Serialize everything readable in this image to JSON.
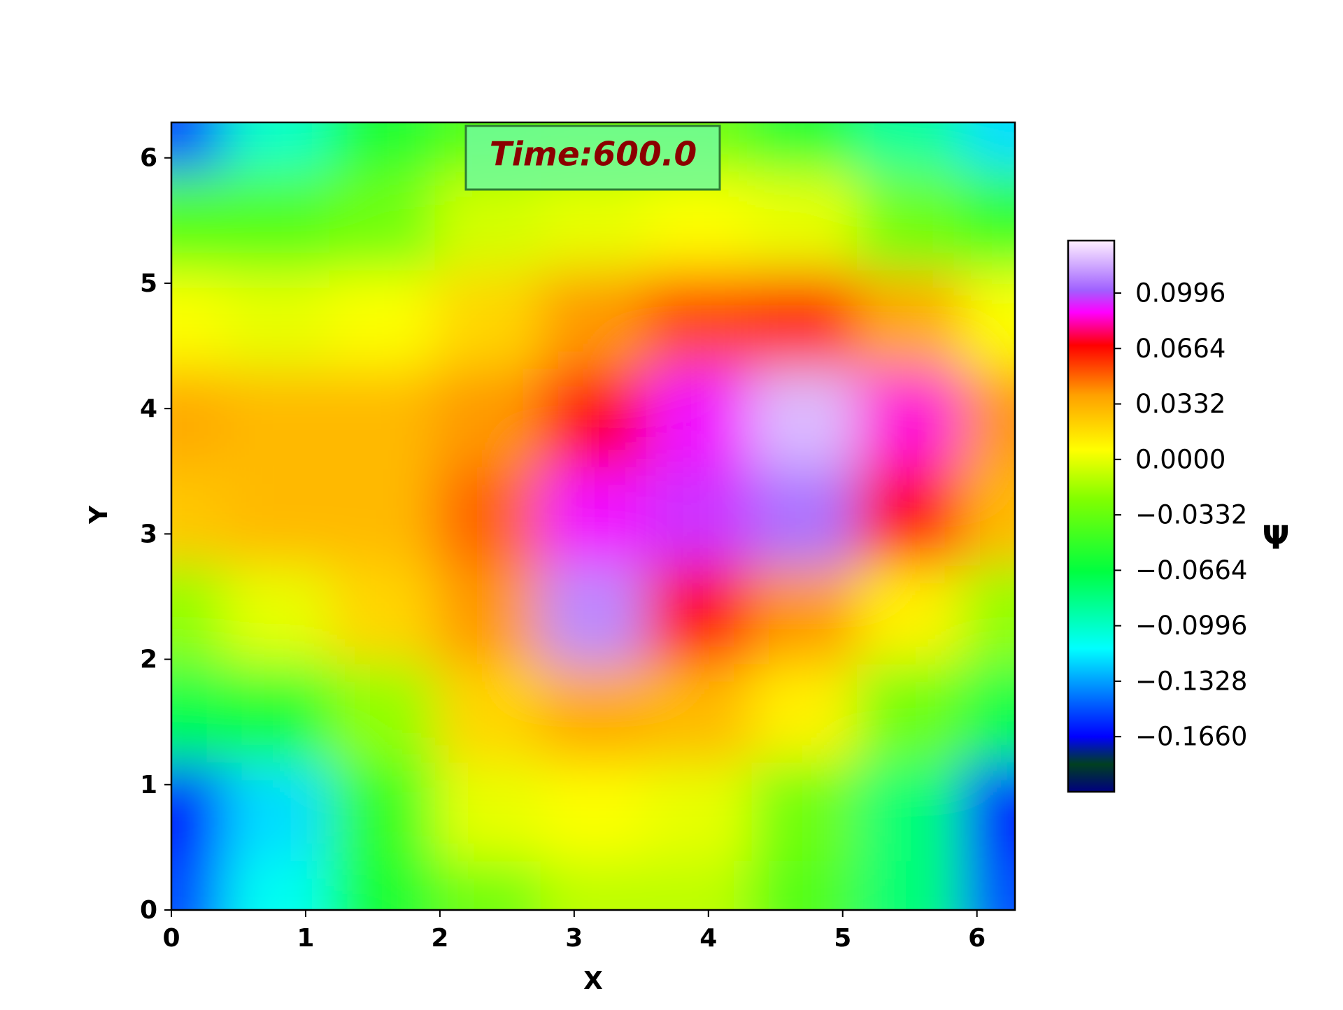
{
  "chart_data": {
    "type": "contourf",
    "annotation": "Time:600.0",
    "xlabel": "X",
    "ylabel": "Y",
    "colorbar_label": "Ψ",
    "xlim": [
      0,
      6.283
    ],
    "ylim": [
      0,
      6.283
    ],
    "xticks": [
      0,
      1,
      2,
      3,
      4,
      5,
      6
    ],
    "yticks": [
      0,
      1,
      2,
      3,
      4,
      5,
      6
    ],
    "x": [
      0,
      0.785,
      1.571,
      2.356,
      3.142,
      3.927,
      4.712,
      5.498,
      6.283
    ],
    "y": [
      0,
      0.785,
      1.571,
      2.356,
      3.142,
      3.927,
      4.712,
      5.498,
      6.283
    ],
    "z": [
      [
        -0.15,
        -0.11,
        -0.06,
        -0.03,
        -0.01,
        -0.01,
        -0.04,
        -0.08,
        -0.15
      ],
      [
        -0.16,
        -0.12,
        -0.05,
        0.0,
        0.005,
        0.0,
        -0.03,
        -0.08,
        -0.16
      ],
      [
        -0.07,
        -0.06,
        -0.02,
        0.02,
        0.035,
        0.03,
        0.01,
        -0.03,
        -0.07
      ],
      [
        -0.02,
        0.0,
        0.02,
        0.04,
        0.11,
        0.07,
        0.04,
        0.01,
        -0.02
      ],
      [
        0.025,
        0.03,
        0.03,
        0.05,
        0.09,
        0.095,
        0.105,
        0.07,
        0.03
      ],
      [
        0.035,
        0.03,
        0.03,
        0.04,
        0.07,
        0.09,
        0.12,
        0.085,
        0.04
      ],
      [
        0.005,
        0.0,
        0.005,
        0.02,
        0.04,
        0.055,
        0.06,
        0.035,
        0.005
      ],
      [
        -0.04,
        -0.04,
        -0.03,
        -0.005,
        0.0,
        0.005,
        0.0,
        -0.03,
        -0.05
      ],
      [
        -0.15,
        -0.1,
        -0.06,
        -0.04,
        -0.03,
        -0.03,
        -0.06,
        -0.09,
        -0.12
      ]
    ],
    "clim": [
      -0.199,
      0.131
    ],
    "cticks": [
      {
        "value": -0.166,
        "label": "−0.1660"
      },
      {
        "value": -0.1328,
        "label": "−0.1328"
      },
      {
        "value": -0.0996,
        "label": "−0.0996"
      },
      {
        "value": -0.0664,
        "label": "−0.0664"
      },
      {
        "value": -0.0332,
        "label": "−0.0332"
      },
      {
        "value": 0,
        "label": "0.0000"
      },
      0.0332,
      0.0664,
      0.0996
    ],
    "colormap": [
      [
        0,
        "#000080"
      ],
      [
        0.05,
        "#004020"
      ],
      [
        0.1,
        "#0000ff"
      ],
      [
        0.26,
        "#00ffff"
      ],
      [
        0.4,
        "#00ff40"
      ],
      [
        0.53,
        "#80ff00"
      ],
      [
        0.62,
        "#ffff00"
      ],
      [
        0.72,
        "#ffa000"
      ],
      [
        0.81,
        "#ff0000"
      ],
      [
        0.87,
        "#ff00ff"
      ],
      [
        0.91,
        "#a060ff"
      ],
      [
        1,
        "#fff0ff"
      ]
    ]
  }
}
